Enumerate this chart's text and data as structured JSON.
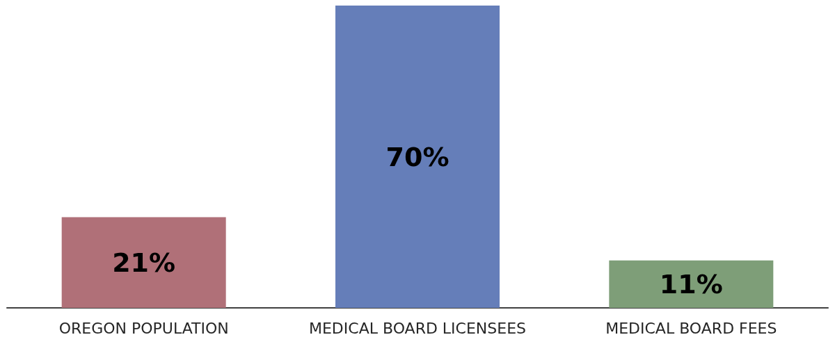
{
  "chart_data": {
    "type": "bar",
    "categories": [
      "OREGON POPULATION",
      "MEDICAL BOARD LICENSEES",
      "MEDICAL BOARD FEES"
    ],
    "values": [
      21,
      70,
      11
    ],
    "colors": [
      "#b07078",
      "#657eb9",
      "#7e9e78"
    ],
    "value_labels": [
      "21%",
      "70%",
      "11%"
    ]
  }
}
